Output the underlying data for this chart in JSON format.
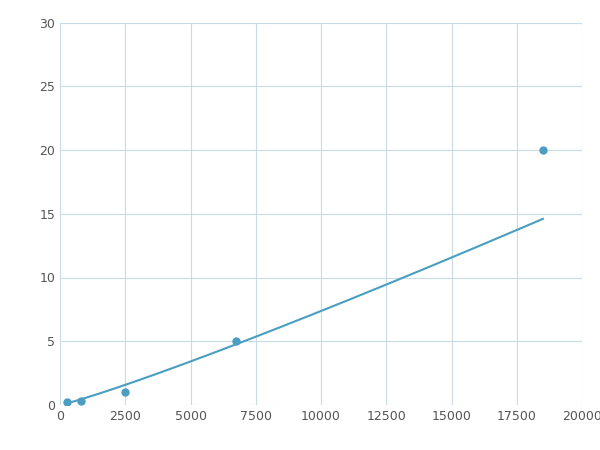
{
  "x": [
    250,
    800,
    2500,
    6750,
    18500
  ],
  "y": [
    0.2,
    0.3,
    1.0,
    5.0,
    20.0
  ],
  "xlim": [
    0,
    20000
  ],
  "ylim": [
    0,
    30
  ],
  "xticks": [
    0,
    2500,
    5000,
    7500,
    10000,
    12500,
    15000,
    17500,
    20000
  ],
  "yticks": [
    0,
    5,
    10,
    15,
    20,
    25,
    30
  ],
  "line_color": "#4a9ec2",
  "marker_color": "#4a9ec2",
  "background_color": "#ffffff",
  "grid_color": "#c8dce8",
  "figsize": [
    6.0,
    4.5
  ],
  "dpi": 100
}
